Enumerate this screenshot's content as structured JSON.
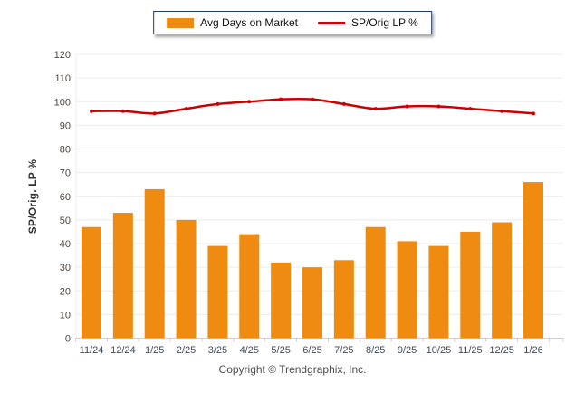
{
  "legend": {
    "items": [
      {
        "swatch": "bar"
      },
      {
        "swatch": "line"
      }
    ]
  },
  "footer": {
    "copyright": "Copyright © Trendgraphix, Inc."
  },
  "colors": {
    "bar": "#EF8B10",
    "line": "#CC0000",
    "legend_border": "#1F3B6C",
    "grid": "#ECECEC",
    "axis_line": "#CFCFCF",
    "tick_mark": "#C9C9C9",
    "y_tick_label": "#4F4843",
    "x_tick_label": "#3E4A5A",
    "axis_title": "#333333",
    "copyright": "#4D4D4D"
  },
  "chart_data": {
    "type": "bar+line",
    "title": "",
    "categories": [
      "11/24",
      "12/24",
      "1/25",
      "2/25",
      "3/25",
      "4/25",
      "5/25",
      "6/25",
      "7/25",
      "8/25",
      "9/25",
      "10/25",
      "11/25",
      "12/25",
      "1/26"
    ],
    "series": [
      {
        "name": "Avg Days on Market",
        "type": "bar",
        "values": [
          47,
          53,
          63,
          50,
          39,
          44,
          32,
          30,
          33,
          47,
          41,
          39,
          45,
          49,
          66
        ]
      },
      {
        "name": "SP/Orig LP %",
        "type": "line",
        "values": [
          96,
          96,
          95,
          97,
          99,
          100,
          101,
          101,
          99,
          97,
          98,
          98,
          97,
          96,
          95
        ]
      }
    ],
    "xlabel": "",
    "ylabel": "SP/Orig. LP %",
    "ylim": [
      0,
      120
    ],
    "ytick_step": 10,
    "grid": true,
    "legend_position": "top-center"
  }
}
